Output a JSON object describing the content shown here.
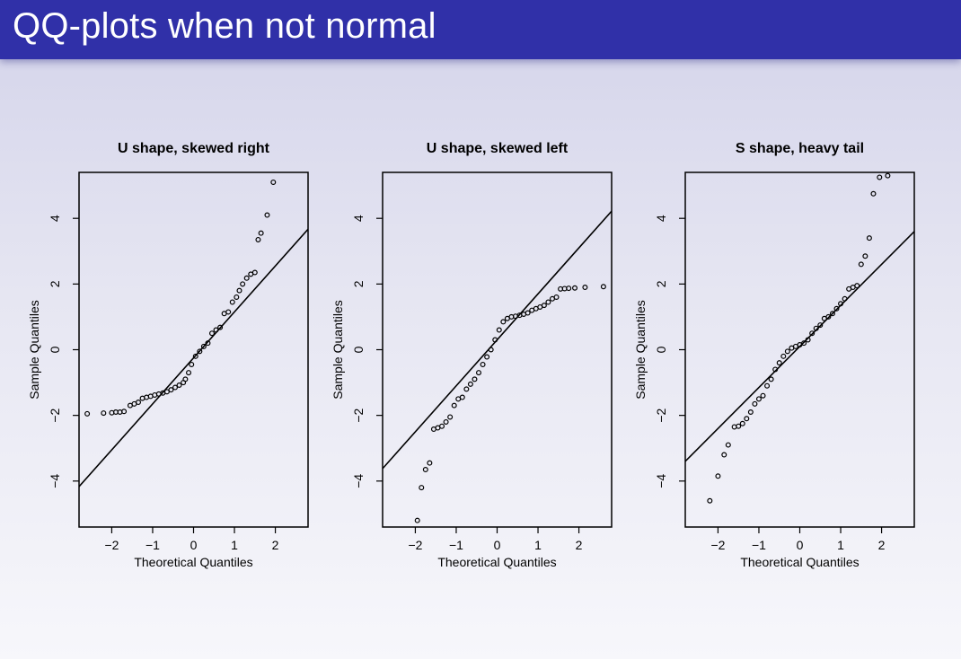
{
  "slide": {
    "title": "QQ-plots when not normal"
  },
  "chart_data": [
    {
      "type": "scatter",
      "title": "U shape, skewed right",
      "xlabel": "Theoretical Quantiles",
      "ylabel": "Sample Quantiles",
      "xlim": [
        -2.8,
        2.8
      ],
      "ylim": [
        -5.4,
        5.4
      ],
      "xticks": [
        -2,
        -1,
        0,
        1,
        2
      ],
      "yticks": [
        -4,
        -2,
        0,
        2,
        4
      ],
      "x_tick_labels": [
        "−2",
        "−1",
        "0",
        "1",
        "2"
      ],
      "y_tick_labels": [
        "−4",
        "−2",
        "0",
        "2",
        "4"
      ],
      "reference_line": {
        "slope": 1.4,
        "intercept": -0.25
      },
      "points": [
        [
          -2.6,
          -1.95
        ],
        [
          -2.2,
          -1.93
        ],
        [
          -2.0,
          -1.92
        ],
        [
          -1.9,
          -1.9
        ],
        [
          -1.8,
          -1.9
        ],
        [
          -1.7,
          -1.88
        ],
        [
          -1.55,
          -1.7
        ],
        [
          -1.45,
          -1.65
        ],
        [
          -1.35,
          -1.6
        ],
        [
          -1.25,
          -1.48
        ],
        [
          -1.15,
          -1.45
        ],
        [
          -1.05,
          -1.42
        ],
        [
          -0.95,
          -1.38
        ],
        [
          -0.85,
          -1.35
        ],
        [
          -0.75,
          -1.32
        ],
        [
          -0.65,
          -1.28
        ],
        [
          -0.55,
          -1.22
        ],
        [
          -0.45,
          -1.15
        ],
        [
          -0.35,
          -1.08
        ],
        [
          -0.25,
          -1.0
        ],
        [
          -0.2,
          -0.9
        ],
        [
          -0.12,
          -0.7
        ],
        [
          -0.05,
          -0.45
        ],
        [
          0.05,
          -0.2
        ],
        [
          0.15,
          -0.05
        ],
        [
          0.25,
          0.1
        ],
        [
          0.35,
          0.2
        ],
        [
          0.45,
          0.5
        ],
        [
          0.55,
          0.6
        ],
        [
          0.65,
          0.68
        ],
        [
          0.75,
          1.1
        ],
        [
          0.85,
          1.15
        ],
        [
          0.95,
          1.45
        ],
        [
          1.05,
          1.6
        ],
        [
          1.12,
          1.8
        ],
        [
          1.2,
          2.0
        ],
        [
          1.3,
          2.18
        ],
        [
          1.4,
          2.3
        ],
        [
          1.5,
          2.35
        ],
        [
          1.58,
          3.35
        ],
        [
          1.65,
          3.55
        ],
        [
          1.8,
          4.1
        ],
        [
          1.95,
          5.1
        ]
      ]
    },
    {
      "type": "scatter",
      "title": "U shape, skewed left",
      "xlabel": "Theoretical Quantiles",
      "ylabel": "Sample Quantiles",
      "xlim": [
        -2.8,
        2.8
      ],
      "ylim": [
        -5.4,
        5.4
      ],
      "xticks": [
        -2,
        -1,
        0,
        1,
        2
      ],
      "yticks": [
        -4,
        -2,
        0,
        2,
        4
      ],
      "x_tick_labels": [
        "−2",
        "−1",
        "0",
        "1",
        "2"
      ],
      "y_tick_labels": [
        "−4",
        "−2",
        "0",
        "2",
        "4"
      ],
      "reference_line": {
        "slope": 1.4,
        "intercept": 0.3
      },
      "points": [
        [
          -1.95,
          -5.2
        ],
        [
          -1.85,
          -4.2
        ],
        [
          -1.75,
          -3.65
        ],
        [
          -1.65,
          -3.45
        ],
        [
          -1.55,
          -2.42
        ],
        [
          -1.45,
          -2.38
        ],
        [
          -1.35,
          -2.33
        ],
        [
          -1.25,
          -2.2
        ],
        [
          -1.15,
          -2.05
        ],
        [
          -1.05,
          -1.7
        ],
        [
          -0.95,
          -1.5
        ],
        [
          -0.85,
          -1.45
        ],
        [
          -0.75,
          -1.2
        ],
        [
          -0.65,
          -1.05
        ],
        [
          -0.55,
          -0.9
        ],
        [
          -0.45,
          -0.7
        ],
        [
          -0.35,
          -0.45
        ],
        [
          -0.25,
          -0.22
        ],
        [
          -0.15,
          0.0
        ],
        [
          -0.05,
          0.3
        ],
        [
          0.05,
          0.6
        ],
        [
          0.15,
          0.85
        ],
        [
          0.25,
          0.95
        ],
        [
          0.35,
          1.0
        ],
        [
          0.45,
          1.02
        ],
        [
          0.55,
          1.05
        ],
        [
          0.65,
          1.08
        ],
        [
          0.75,
          1.12
        ],
        [
          0.85,
          1.2
        ],
        [
          0.95,
          1.25
        ],
        [
          1.05,
          1.3
        ],
        [
          1.15,
          1.35
        ],
        [
          1.25,
          1.45
        ],
        [
          1.35,
          1.55
        ],
        [
          1.45,
          1.6
        ],
        [
          1.55,
          1.85
        ],
        [
          1.65,
          1.86
        ],
        [
          1.75,
          1.87
        ],
        [
          1.9,
          1.88
        ],
        [
          2.15,
          1.9
        ],
        [
          2.6,
          1.92
        ]
      ]
    },
    {
      "type": "scatter",
      "title": "S shape, heavy tail",
      "xlabel": "Theoretical Quantiles",
      "ylabel": "Sample Quantiles",
      "xlim": [
        -2.8,
        2.8
      ],
      "ylim": [
        -5.4,
        5.4
      ],
      "xticks": [
        -2,
        -1,
        0,
        1,
        2
      ],
      "yticks": [
        -4,
        -2,
        0,
        2,
        4
      ],
      "x_tick_labels": [
        "−2",
        "−1",
        "0",
        "1",
        "2"
      ],
      "y_tick_labels": [
        "−4",
        "−2",
        "0",
        "2",
        "4"
      ],
      "reference_line": {
        "slope": 1.25,
        "intercept": 0.1
      },
      "points": [
        [
          -2.2,
          -4.6
        ],
        [
          -2.0,
          -3.85
        ],
        [
          -1.85,
          -3.2
        ],
        [
          -1.75,
          -2.9
        ],
        [
          -1.6,
          -2.35
        ],
        [
          -1.5,
          -2.33
        ],
        [
          -1.4,
          -2.25
        ],
        [
          -1.3,
          -2.1
        ],
        [
          -1.2,
          -1.9
        ],
        [
          -1.1,
          -1.65
        ],
        [
          -1.0,
          -1.5
        ],
        [
          -0.9,
          -1.4
        ],
        [
          -0.8,
          -1.1
        ],
        [
          -0.7,
          -0.9
        ],
        [
          -0.6,
          -0.6
        ],
        [
          -0.5,
          -0.4
        ],
        [
          -0.4,
          -0.2
        ],
        [
          -0.3,
          -0.05
        ],
        [
          -0.2,
          0.05
        ],
        [
          -0.1,
          0.1
        ],
        [
          0.0,
          0.15
        ],
        [
          0.1,
          0.2
        ],
        [
          0.2,
          0.3
        ],
        [
          0.3,
          0.5
        ],
        [
          0.4,
          0.65
        ],
        [
          0.5,
          0.75
        ],
        [
          0.6,
          0.95
        ],
        [
          0.7,
          1.0
        ],
        [
          0.8,
          1.1
        ],
        [
          0.9,
          1.25
        ],
        [
          1.0,
          1.4
        ],
        [
          1.1,
          1.55
        ],
        [
          1.2,
          1.85
        ],
        [
          1.3,
          1.9
        ],
        [
          1.4,
          1.95
        ],
        [
          1.5,
          2.6
        ],
        [
          1.6,
          2.85
        ],
        [
          1.7,
          3.4
        ],
        [
          1.8,
          4.75
        ],
        [
          1.95,
          5.25
        ],
        [
          2.15,
          5.3
        ]
      ]
    }
  ]
}
